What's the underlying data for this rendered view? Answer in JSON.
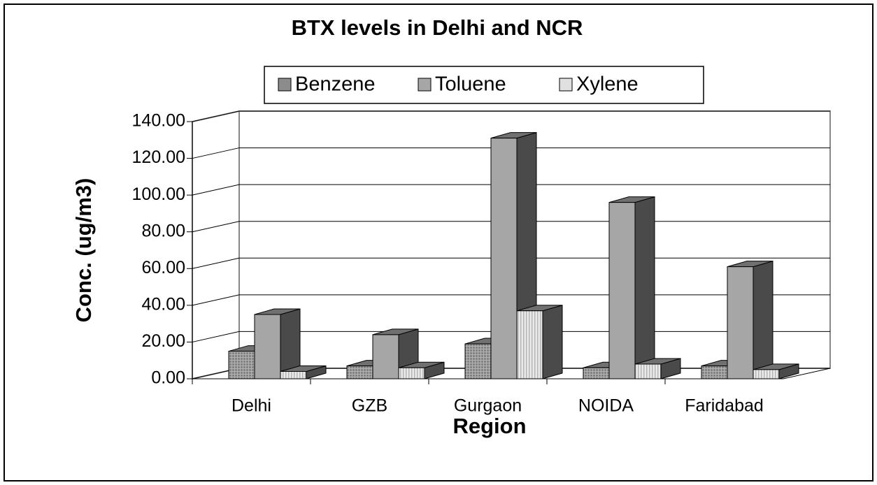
{
  "chart_data": {
    "type": "bar3d",
    "title": "BTX levels in Delhi and NCR",
    "x_label": "Region",
    "y_label": "Conc. (ug/m3)",
    "categories": [
      "Delhi",
      "GZB",
      "Gurgaon",
      "NOIDA",
      "Faridabad"
    ],
    "series": [
      {
        "name": "Benzene",
        "color": "#8c8c8c",
        "values": [
          15,
          7,
          19,
          6,
          7
        ]
      },
      {
        "name": "Toluene",
        "color": "#a6a6a6",
        "values": [
          35,
          24,
          131,
          96,
          61
        ]
      },
      {
        "name": "Xylene",
        "color": "#e0e0e0",
        "values": [
          4,
          6,
          37,
          8,
          5
        ]
      }
    ],
    "ylim": [
      0,
      140
    ],
    "yticks": [
      {
        "value": 0,
        "label": "0.00"
      },
      {
        "value": 20,
        "label": "20.00"
      },
      {
        "value": 40,
        "label": "40.00"
      },
      {
        "value": 60,
        "label": "60.00"
      },
      {
        "value": 80,
        "label": "80.00"
      },
      {
        "value": 100,
        "label": "100.00"
      },
      {
        "value": 120,
        "label": "120.00"
      },
      {
        "value": 140,
        "label": "140.00"
      }
    ],
    "grid": true,
    "legend": "top"
  }
}
